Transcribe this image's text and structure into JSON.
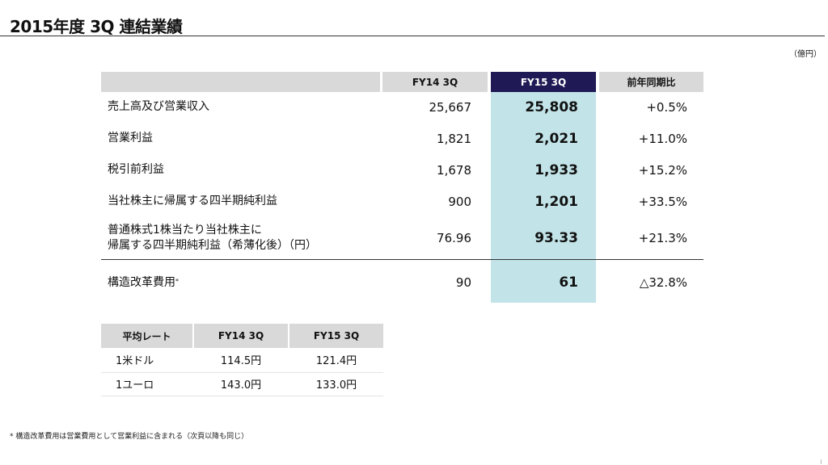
{
  "title": "2015年度 3Q 連結業績",
  "unit": "（億円）",
  "main_table": {
    "headers": [
      "",
      "FY14 3Q",
      "FY15 3Q",
      "前年同期比"
    ],
    "rows": [
      {
        "label": "売上高及び営業収入",
        "fy14": "25,667",
        "fy15": "25,808",
        "yoy": "+0.5%"
      },
      {
        "label": "営業利益",
        "fy14": "1,821",
        "fy15": "2,021",
        "yoy": "+11.0%"
      },
      {
        "label": "税引前利益",
        "fy14": "1,678",
        "fy15": "1,933",
        "yoy": "+15.2%"
      },
      {
        "label": "当社株主に帰属する四半期純利益",
        "fy14": "900",
        "fy15": "1,201",
        "yoy": "+33.5%"
      },
      {
        "label_line1": "普通株式1株当たり当社株主に",
        "label_line2": "帰属する四半期純利益（希薄化後）（円）",
        "fy14": "76.96",
        "fy15": "93.33",
        "yoy": "+21.3%"
      },
      {
        "label": "構造改革費用",
        "label_sup": "*",
        "fy14": "90",
        "fy15": "61",
        "yoy": "△32.8%"
      }
    ]
  },
  "rate_table": {
    "headers": [
      "平均レート",
      "FY14 3Q",
      "FY15 3Q"
    ],
    "rows": [
      [
        "1米ドル",
        "114.5円",
        "121.4円"
      ],
      [
        "1ユーロ",
        "143.0円",
        "133.0円"
      ]
    ]
  },
  "footnote": "* 構造改革費用は営業費用として営業利益に含まれる（次頁以降も同じ）"
}
